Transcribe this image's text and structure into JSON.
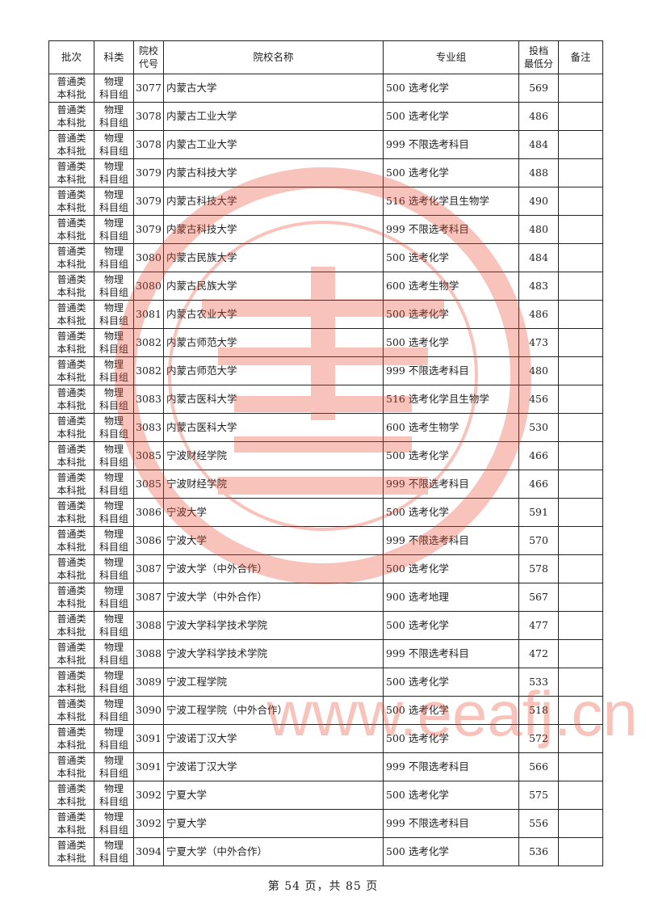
{
  "header": {
    "batch": "批次",
    "subject": "科类",
    "code": "院校\n代号",
    "school": "院校名称",
    "group": "专业组",
    "score": "投档\n最低分",
    "note": "备注"
  },
  "watermark": {
    "url": "www.eeafj.cn",
    "seal_color": "#e8462f"
  },
  "rows": [
    {
      "batch": "普通类\n本科批",
      "subject": "物理\n科目组",
      "code": "3077",
      "school": "内蒙古大学",
      "group": "500  选考化学",
      "score": "569",
      "note": ""
    },
    {
      "batch": "普通类\n本科批",
      "subject": "物理\n科目组",
      "code": "3078",
      "school": "内蒙古工业大学",
      "group": "500  选考化学",
      "score": "486",
      "note": ""
    },
    {
      "batch": "普通类\n本科批",
      "subject": "物理\n科目组",
      "code": "3078",
      "school": "内蒙古工业大学",
      "group": "999  不限选考科目",
      "score": "484",
      "note": ""
    },
    {
      "batch": "普通类\n本科批",
      "subject": "物理\n科目组",
      "code": "3079",
      "school": "内蒙古科技大学",
      "group": "500  选考化学",
      "score": "488",
      "note": ""
    },
    {
      "batch": "普通类\n本科批",
      "subject": "物理\n科目组",
      "code": "3079",
      "school": "内蒙古科技大学",
      "group": "516  选考化学且生物学",
      "score": "490",
      "note": ""
    },
    {
      "batch": "普通类\n本科批",
      "subject": "物理\n科目组",
      "code": "3079",
      "school": "内蒙古科技大学",
      "group": "999  不限选考科目",
      "score": "480",
      "note": ""
    },
    {
      "batch": "普通类\n本科批",
      "subject": "物理\n科目组",
      "code": "3080",
      "school": "内蒙古民族大学",
      "group": "500  选考化学",
      "score": "484",
      "note": ""
    },
    {
      "batch": "普通类\n本科批",
      "subject": "物理\n科目组",
      "code": "3080",
      "school": "内蒙古民族大学",
      "group": "600  选考生物学",
      "score": "483",
      "note": ""
    },
    {
      "batch": "普通类\n本科批",
      "subject": "物理\n科目组",
      "code": "3081",
      "school": "内蒙古农业大学",
      "group": "500  选考化学",
      "score": "486",
      "note": ""
    },
    {
      "batch": "普通类\n本科批",
      "subject": "物理\n科目组",
      "code": "3082",
      "school": "内蒙古师范大学",
      "group": "500  选考化学",
      "score": "473",
      "note": ""
    },
    {
      "batch": "普通类\n本科批",
      "subject": "物理\n科目组",
      "code": "3082",
      "school": "内蒙古师范大学",
      "group": "999  不限选考科目",
      "score": "480",
      "note": ""
    },
    {
      "batch": "普通类\n本科批",
      "subject": "物理\n科目组",
      "code": "3083",
      "school": "内蒙古医科大学",
      "group": "516  选考化学且生物学",
      "score": "456",
      "note": ""
    },
    {
      "batch": "普通类\n本科批",
      "subject": "物理\n科目组",
      "code": "3083",
      "school": "内蒙古医科大学",
      "group": "600  选考生物学",
      "score": "530",
      "note": ""
    },
    {
      "batch": "普通类\n本科批",
      "subject": "物理\n科目组",
      "code": "3085",
      "school": "宁波财经学院",
      "group": "500  选考化学",
      "score": "466",
      "note": ""
    },
    {
      "batch": "普通类\n本科批",
      "subject": "物理\n科目组",
      "code": "3085",
      "school": "宁波财经学院",
      "group": "999  不限选考科目",
      "score": "466",
      "note": ""
    },
    {
      "batch": "普通类\n本科批",
      "subject": "物理\n科目组",
      "code": "3086",
      "school": "宁波大学",
      "group": "500  选考化学",
      "score": "591",
      "note": ""
    },
    {
      "batch": "普通类\n本科批",
      "subject": "物理\n科目组",
      "code": "3086",
      "school": "宁波大学",
      "group": "999  不限选考科目",
      "score": "570",
      "note": ""
    },
    {
      "batch": "普通类\n本科批",
      "subject": "物理\n科目组",
      "code": "3087",
      "school": "宁波大学（中外合作）",
      "group": "500  选考化学",
      "score": "578",
      "note": ""
    },
    {
      "batch": "普通类\n本科批",
      "subject": "物理\n科目组",
      "code": "3087",
      "school": "宁波大学（中外合作）",
      "group": "900  选考地理",
      "score": "567",
      "note": ""
    },
    {
      "batch": "普通类\n本科批",
      "subject": "物理\n科目组",
      "code": "3088",
      "school": "宁波大学科学技术学院",
      "group": "500  选考化学",
      "score": "477",
      "note": ""
    },
    {
      "batch": "普通类\n本科批",
      "subject": "物理\n科目组",
      "code": "3088",
      "school": "宁波大学科学技术学院",
      "group": "999  不限选考科目",
      "score": "472",
      "note": ""
    },
    {
      "batch": "普通类\n本科批",
      "subject": "物理\n科目组",
      "code": "3089",
      "school": "宁波工程学院",
      "group": "500  选考化学",
      "score": "533",
      "note": ""
    },
    {
      "batch": "普通类\n本科批",
      "subject": "物理\n科目组",
      "code": "3090",
      "school": "宁波工程学院（中外合作）",
      "group": "500  选考化学",
      "score": "518",
      "note": ""
    },
    {
      "batch": "普通类\n本科批",
      "subject": "物理\n科目组",
      "code": "3091",
      "school": "宁波诺丁汉大学",
      "group": "500  选考化学",
      "score": "572",
      "note": ""
    },
    {
      "batch": "普通类\n本科批",
      "subject": "物理\n科目组",
      "code": "3091",
      "school": "宁波诺丁汉大学",
      "group": "999  不限选考科目",
      "score": "566",
      "note": ""
    },
    {
      "batch": "普通类\n本科批",
      "subject": "物理\n科目组",
      "code": "3092",
      "school": "宁夏大学",
      "group": "500  选考化学",
      "score": "575",
      "note": ""
    },
    {
      "batch": "普通类\n本科批",
      "subject": "物理\n科目组",
      "code": "3092",
      "school": "宁夏大学",
      "group": "999  不限选考科目",
      "score": "556",
      "note": ""
    },
    {
      "batch": "普通类\n本科批",
      "subject": "物理\n科目组",
      "code": "3094",
      "school": "宁夏大学（中外合作）",
      "group": "500  选考化学",
      "score": "536",
      "note": ""
    }
  ],
  "footer": {
    "page_text": "第 54 页，共 85 页"
  }
}
